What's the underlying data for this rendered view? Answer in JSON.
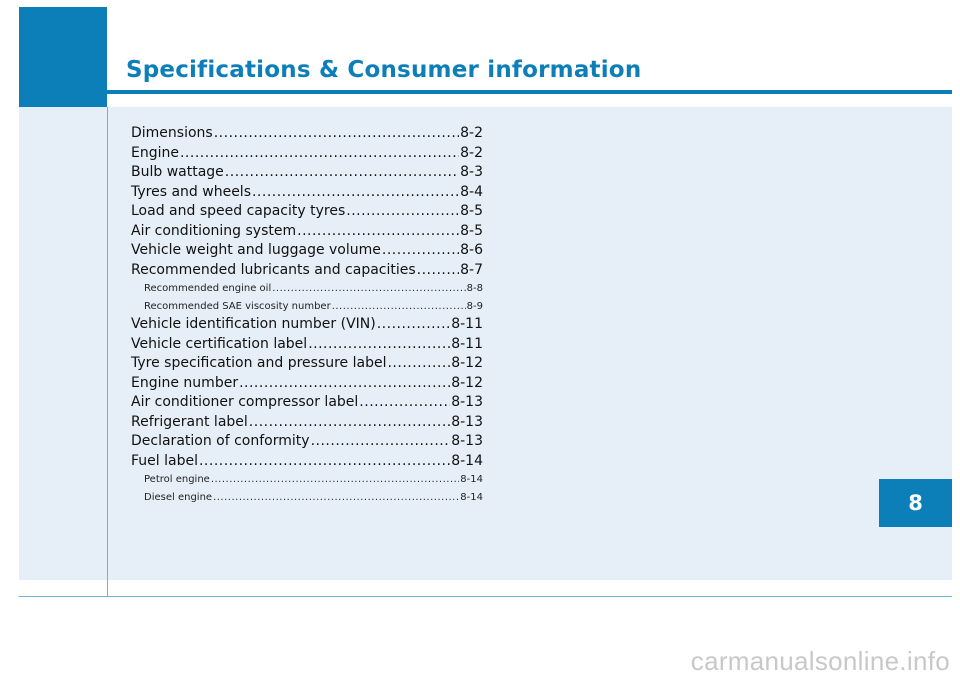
{
  "header": {
    "title": "Specifications & Consumer information"
  },
  "toc": [
    {
      "label": "Dimensions",
      "page": "8-2",
      "level": "main"
    },
    {
      "label": "Engine",
      "page": "8-2",
      "level": "main"
    },
    {
      "label": "Bulb wattage",
      "page": "8-3",
      "level": "main"
    },
    {
      "label": "Tyres and wheels",
      "page": "8-4",
      "level": "main"
    },
    {
      "label": "Load and speed capacity tyres",
      "page": "8-5",
      "level": "main"
    },
    {
      "label": "Air conditioning system",
      "page": "8-5",
      "level": "main"
    },
    {
      "label": "Vehicle weight and luggage volume",
      "page": "8-6",
      "level": "main"
    },
    {
      "label": "Recommended lubricants and capacities",
      "page": "8-7",
      "level": "main"
    },
    {
      "label": "Recommended engine oil",
      "page": "8-8",
      "level": "sub"
    },
    {
      "label": "Recommended SAE viscosity number",
      "page": "8-9",
      "level": "sub"
    },
    {
      "label": "Vehicle identification number (VIN)",
      "page": "8-11",
      "level": "main"
    },
    {
      "label": "Vehicle certification label",
      "page": "8-11",
      "level": "main"
    },
    {
      "label": "Tyre specification and pressure label",
      "page": "8-12",
      "level": "main"
    },
    {
      "label": "Engine number",
      "page": "8-12",
      "level": "main"
    },
    {
      "label": "Air conditioner compressor label",
      "page": "8-13",
      "level": "main"
    },
    {
      "label": "Refrigerant label",
      "page": "8-13",
      "level": "main"
    },
    {
      "label": "Declaration of conformity",
      "page": "8-13",
      "level": "main"
    },
    {
      "label": "Fuel label",
      "page": "8-14",
      "level": "main"
    },
    {
      "label": "Petrol engine",
      "page": "8-14",
      "level": "sub"
    },
    {
      "label": "Diesel engine",
      "page": "8-14",
      "level": "sub"
    }
  ],
  "chapter_tab": {
    "number": "8"
  },
  "watermark": {
    "text": "carmanualsonline.info"
  },
  "colors": {
    "accent": "#0c7fb8",
    "panel": "#e6eff8",
    "rule": "#6fb2d8"
  }
}
